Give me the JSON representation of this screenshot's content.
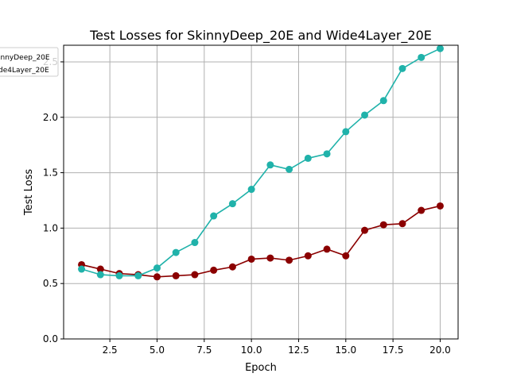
{
  "chart_data": {
    "type": "line",
    "title": "Test Losses for SkinnyDeep_20E and Wide4Layer_20E",
    "xlabel": "Epoch",
    "ylabel": "Test Loss",
    "xlim": [
      0.05,
      20.95
    ],
    "ylim": [
      0.0,
      2.65
    ],
    "xticks": [
      2.5,
      5.0,
      7.5,
      10.0,
      12.5,
      15.0,
      17.5,
      20.0
    ],
    "xtick_labels": [
      "2.5",
      "5.0",
      "7.5",
      "10.0",
      "12.5",
      "15.0",
      "17.5",
      "20.0"
    ],
    "yticks": [
      0.0,
      0.5,
      1.0,
      1.5,
      2.0,
      2.5
    ],
    "ytick_labels": [
      "0.0",
      "0.5",
      "1.0",
      "1.5",
      "2.0",
      "2.5"
    ],
    "grid": true,
    "legend_position": "upper-left",
    "x": [
      1,
      2,
      3,
      4,
      5,
      6,
      7,
      8,
      9,
      10,
      11,
      12,
      13,
      14,
      15,
      16,
      17,
      18,
      19,
      20
    ],
    "series": [
      {
        "name": "SkinnyDeep_20E",
        "legend_label": "innyDeep_20E",
        "color": "#8b0000",
        "values": [
          0.67,
          0.63,
          0.59,
          0.58,
          0.56,
          0.57,
          0.58,
          0.62,
          0.65,
          0.72,
          0.73,
          0.71,
          0.75,
          0.81,
          0.75,
          0.98,
          1.03,
          1.04,
          1.16,
          1.2
        ]
      },
      {
        "name": "Wide4Layer_20E",
        "legend_label": "de4Layer_20E",
        "color": "#20b2aa",
        "values": [
          0.63,
          0.58,
          0.57,
          0.57,
          0.64,
          0.78,
          0.87,
          1.11,
          1.22,
          1.35,
          1.57,
          1.53,
          1.63,
          1.67,
          1.87,
          2.02,
          2.15,
          2.44,
          2.54,
          2.62
        ]
      }
    ]
  }
}
